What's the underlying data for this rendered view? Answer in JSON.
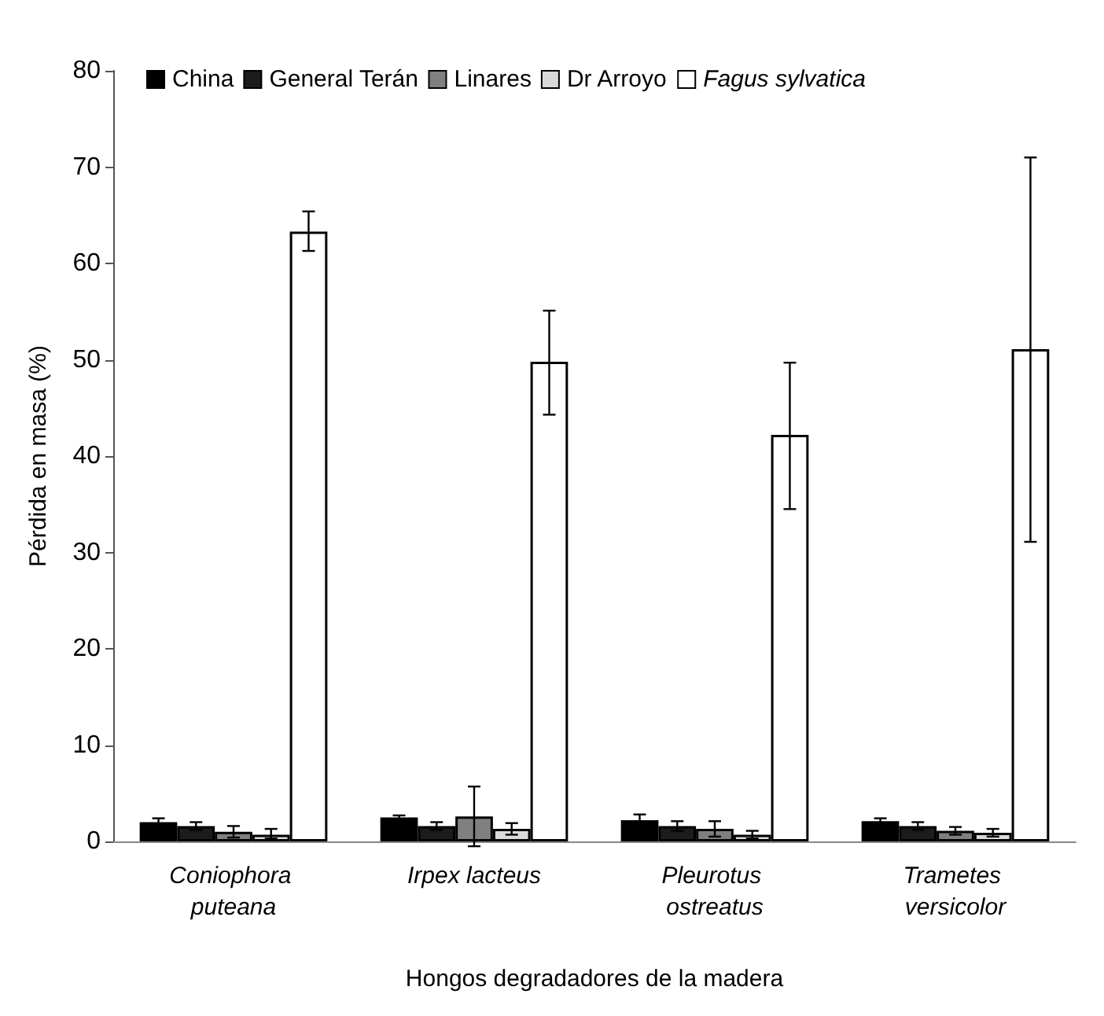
{
  "chart_data": {
    "type": "bar",
    "xlabel": "Hongos degradadores de la madera",
    "ylabel": "Pérdida en masa (%)",
    "categories": [
      "Coniophora puteana",
      "Irpex lacteus",
      "Pleurotus ostreatus",
      "Trametes versicolor"
    ],
    "series": [
      {
        "name": "China",
        "color": "#000000",
        "values": [
          2.0,
          2.5,
          2.2,
          2.1
        ],
        "errors": [
          0.4,
          0.2,
          0.6,
          0.3
        ]
      },
      {
        "name": "General Terán",
        "color": "#1c1c1c",
        "values": [
          1.6,
          1.6,
          1.6,
          1.6
        ],
        "errors": [
          0.4,
          0.4,
          0.5,
          0.4
        ]
      },
      {
        "name": "Linares",
        "color": "#808080",
        "values": [
          1.0,
          2.6,
          1.3,
          1.1
        ],
        "errors": [
          0.6,
          3.1,
          0.8,
          0.4
        ]
      },
      {
        "name": "Dr Arroyo",
        "color": "#d9d9d9",
        "values": [
          0.7,
          1.3,
          0.7,
          0.9
        ],
        "errors": [
          [
            0.3,
            1.3
          ],
          0.6,
          0.4,
          0.4
        ]
      },
      {
        "name": "Fagus sylvatica",
        "color": "#ffffff",
        "values": [
          63.3,
          49.8,
          42.2,
          51.1
        ],
        "errors": [
          [
            61.3,
            65.4
          ],
          [
            44.3,
            55.1
          ],
          [
            34.5,
            49.7
          ],
          [
            31.1,
            71.0
          ]
        ]
      }
    ],
    "ylim": [
      0,
      80
    ],
    "yticks": [
      0,
      10,
      20,
      30,
      40,
      50,
      60,
      70,
      80
    ],
    "grid": false,
    "legend": "top left"
  }
}
